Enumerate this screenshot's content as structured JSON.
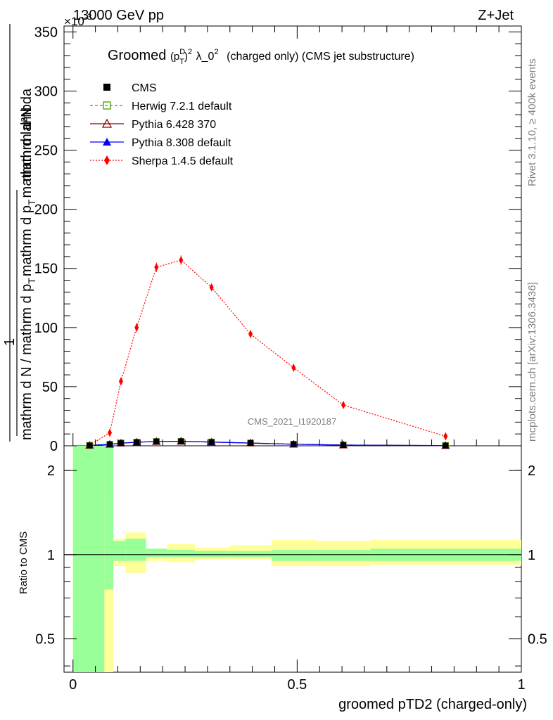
{
  "header": {
    "energy": "13000 GeV pp",
    "process": "Z+Jet",
    "exponent_label": "×10",
    "exponent_power": "-3"
  },
  "plot_title": {
    "prefix": "Groomed",
    "sym_p": "(p",
    "sym_sup": "D",
    "sym_sub": "T",
    "sym_close": ")",
    "sym_pow": "2",
    "lambda": "λ_0",
    "lambda_pow": "2",
    "suffix": "(charged only) (CMS jet substructure)"
  },
  "side_labels": {
    "rivet": "Rivet 3.1.10, ≥ 400k events",
    "mcplots": "mcplots.cern.ch [arXiv:1306.3436]"
  },
  "watermark": "CMS_2021_I1920187",
  "main_ylabel": {
    "numerator": "mathrm d²N",
    "fraction_one": "1",
    "denominator_line": "mathrm d N / mathrm d p",
    "denominator_sub": "T",
    "denominator_rest": "mathrm d p",
    "denominator_sub2": "T",
    "denominator_tail": "mathrm d lambda"
  },
  "ratio_ylabel": "Ratio to CMS",
  "xlabel": "groomed pTD2 (charged-only)",
  "legend": [
    {
      "label": "CMS",
      "color": "#000000",
      "marker": "square-filled",
      "line": "none"
    },
    {
      "label": "Herwig 7.2.1 default",
      "color": "#4d9a00",
      "marker": "square-open",
      "line": "dashed"
    },
    {
      "label": "Pythia 6.428 370",
      "color": "#8b0000",
      "marker": "triangle-open",
      "line": "solid"
    },
    {
      "label": "Pythia 8.308 default",
      "color": "#0000ff",
      "marker": "triangle-filled",
      "line": "solid"
    },
    {
      "label": "Sherpa 1.4.5 default",
      "color": "#ff0000",
      "marker": "diamond-filled",
      "line": "dotted"
    }
  ],
  "chart_data": {
    "type": "line",
    "title": "Groomed (p_T^D)^2 λ_0^2 (charged only) (CMS jet substructure)",
    "xlabel": "groomed pTD2 (charged-only)",
    "ylabel": "1/(dN/dp_T dp_T dλ) d²N/(dp_T dp_T dλ)",
    "xlim": [
      -0.02,
      1.0
    ],
    "ylim": [
      0,
      355
    ],
    "y_scale_note": "×10^-3",
    "xticks": [
      0,
      0.5,
      1
    ],
    "xtick_labels": [
      "0",
      "0.5",
      "1"
    ],
    "yticks": [
      0,
      50,
      100,
      150,
      200,
      250,
      300,
      350
    ],
    "ytick_labels": [
      "0",
      "50",
      "100",
      "150",
      "200",
      "250",
      "300",
      "350"
    ],
    "x": [
      0.037,
      0.082,
      0.107,
      0.142,
      0.186,
      0.241,
      0.309,
      0.396,
      0.492,
      0.603,
      0.831
    ],
    "series": [
      {
        "name": "CMS",
        "values": [
          0.3,
          1.2,
          2.2,
          3.0,
          3.6,
          3.8,
          3.1,
          2.3,
          1.3,
          0.6,
          0.15
        ]
      },
      {
        "name": "Herwig 7.2.1 default",
        "values": [
          0.4,
          1.3,
          2.4,
          3.1,
          3.7,
          3.8,
          3.2,
          2.4,
          1.4,
          0.7,
          0.2
        ]
      },
      {
        "name": "Pythia 6.428 370",
        "values": [
          0.3,
          1.2,
          2.2,
          3.0,
          3.6,
          3.8,
          3.1,
          2.3,
          1.3,
          0.6,
          0.15
        ]
      },
      {
        "name": "Pythia 8.308 default",
        "values": [
          0.3,
          1.2,
          2.2,
          3.0,
          3.6,
          3.8,
          3.1,
          2.3,
          1.3,
          0.6,
          0.15
        ]
      },
      {
        "name": "Sherpa 1.4.5 default",
        "values": [
          0.5,
          11,
          54.5,
          100,
          151,
          157,
          134,
          94.5,
          66,
          34.5,
          8
        ]
      }
    ],
    "sherpa_errors": [
      0.3,
      1.5,
      3,
      4,
      4,
      4,
      3,
      3,
      2,
      1.5,
      1
    ],
    "ratio": {
      "ylabel": "Ratio to CMS",
      "yscale": "log",
      "ylim": [
        0.38,
        2.45
      ],
      "yticks": [
        0.5,
        1,
        2
      ],
      "ytick_labels": [
        "0.5",
        "1",
        "2"
      ],
      "band_edges": [
        0,
        0.07,
        0.09,
        0.117,
        0.163,
        0.21,
        0.272,
        0.35,
        0.443,
        0.542,
        0.664,
        1.0
      ],
      "stat_band": [
        [
          0.3,
          3.0
        ],
        [
          0.75,
          3.0
        ],
        [
          0.95,
          1.12
        ],
        [
          0.95,
          1.14
        ],
        [
          0.98,
          1.05
        ],
        [
          0.98,
          1.04
        ],
        [
          0.98,
          1.03
        ],
        [
          0.98,
          1.03
        ],
        [
          0.95,
          1.04
        ],
        [
          0.95,
          1.04
        ],
        [
          0.95,
          1.05
        ]
      ],
      "syst_band": [
        [
          0.3,
          3.0
        ],
        [
          0.3,
          1.68
        ],
        [
          0.91,
          1.14
        ],
        [
          0.86,
          1.2
        ],
        [
          0.95,
          1.05
        ],
        [
          0.94,
          1.09
        ],
        [
          0.96,
          1.06
        ],
        [
          0.96,
          1.08
        ],
        [
          0.91,
          1.13
        ],
        [
          0.91,
          1.12
        ],
        [
          0.92,
          1.13
        ]
      ]
    }
  }
}
